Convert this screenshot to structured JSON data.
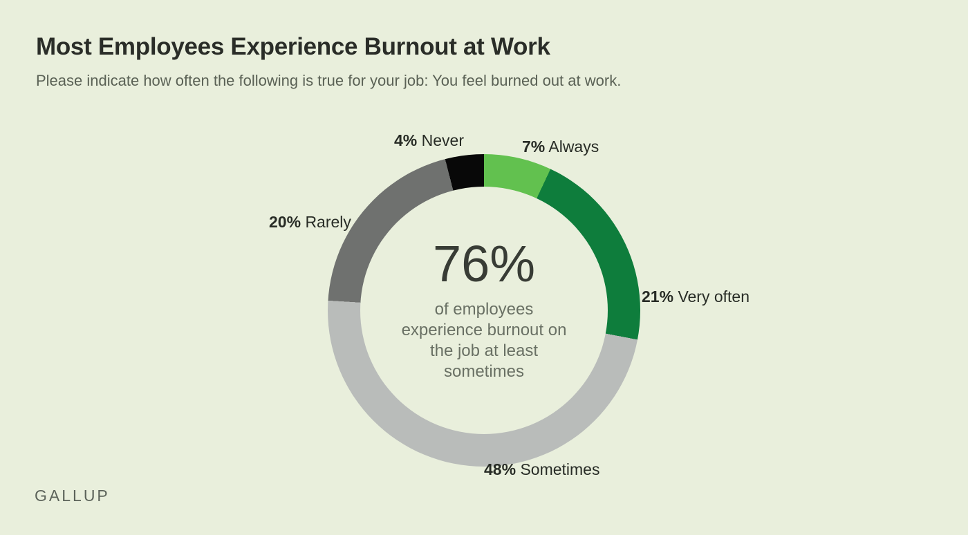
{
  "header": {
    "title": "Most Employees Experience Burnout at Work",
    "subtitle": "Please indicate how often the following is true for your job: You feel burned out at work."
  },
  "footer": {
    "logo": "GALLUP"
  },
  "colors": {
    "canvas_background": "#e9efdc",
    "always_green": "#62c14f",
    "very_often_green": "#0e7d3c",
    "sometimes_gray": "#b9bcba",
    "rarely_gray": "#6f716f",
    "never_black": "#080808"
  },
  "chart_data": {
    "type": "pie",
    "subtype": "donut",
    "title": "Most Employees Experience Burnout at Work",
    "question": "Please indicate how often the following is true for your job: You feel burned out at work.",
    "start_angle_deg": 0,
    "direction": "clockwise",
    "legend_position": "around-slices",
    "slices": [
      {
        "label": "Always",
        "pct": "7%",
        "value": 7,
        "color": "#62c14f"
      },
      {
        "label": "Very often",
        "pct": "21%",
        "value": 21,
        "color": "#0e7d3c"
      },
      {
        "label": "Sometimes",
        "pct": "48%",
        "value": 48,
        "color": "#b9bcba"
      },
      {
        "label": "Rarely",
        "pct": "20%",
        "value": 20,
        "color": "#6f716f"
      },
      {
        "label": "Never",
        "pct": "4%",
        "value": 4,
        "color": "#080808"
      }
    ],
    "center": {
      "headline": "76%",
      "caption": "of employees\nexperience burnout on\nthe job at least\nsometimes"
    }
  }
}
